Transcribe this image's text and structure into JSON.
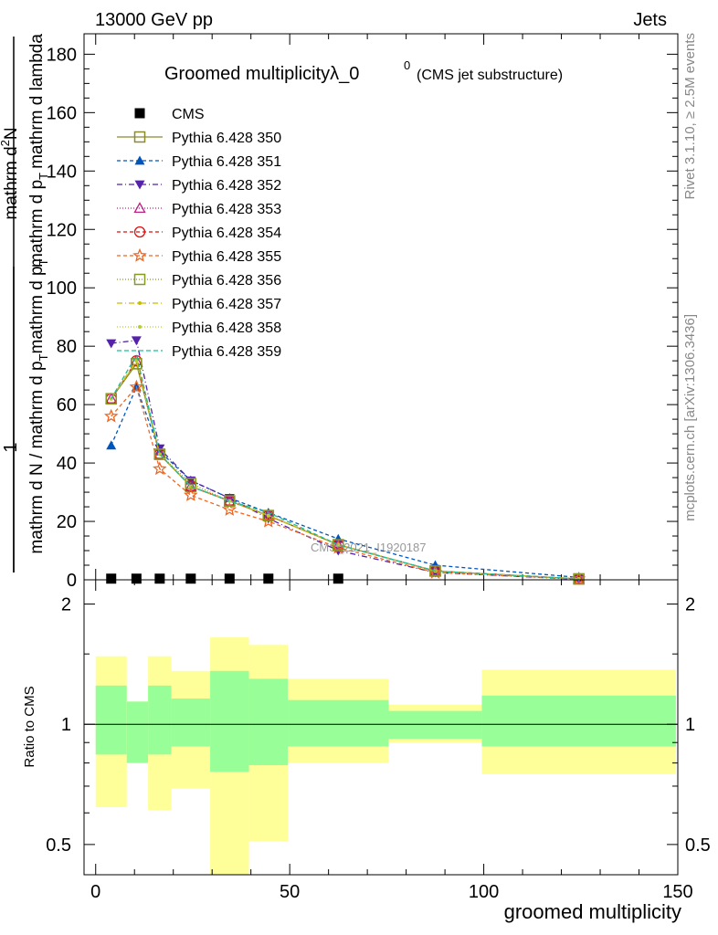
{
  "header": {
    "left": "13000 GeV pp",
    "right": "Jets"
  },
  "side_labels": {
    "rivet": "Rivet 3.1.10, ≥ 2.5M events",
    "mcplots": "mcplots.cern.ch [arXiv:1306.3436]"
  },
  "chart_data": [
    {
      "type": "line",
      "panel": "main",
      "title": "Groomed multiplicityλ_0",
      "title_sup": "0",
      "subtitle": "(CMS jet substructure)",
      "watermark": "CMS_2021_I1920187",
      "ylabel": "1 / (mathrm d N / mathrm d p_T mathrm d p_T) · mathrm d²N / mathrm d lambda",
      "ylabel_parts": {
        "one": "1",
        "denominator": "mathrm d N / mathrm d p",
        "denominator_sub": "T",
        "denominator_tail": "mathrm d p",
        "denominator_tail_sub": "T",
        "numerator_lower": "mathrm d p",
        "numerator_lower_sub": "T",
        "numerator_tail": "mathrm d lambda",
        "numerator_top": "mathrm d",
        "numerator_top_sup": "2",
        "numerator_top_tail": "N"
      },
      "xlim": [
        -3,
        150
      ],
      "ylim": [
        0,
        187
      ],
      "yticks": [
        0,
        20,
        40,
        60,
        80,
        100,
        120,
        140,
        160,
        180
      ],
      "grid": false,
      "legend_position": "top-left",
      "series": [
        {
          "name": "CMS",
          "color": "#000000",
          "marker": "square-filled",
          "dash": "none",
          "x": [
            4,
            10.5,
            16.5,
            24.5,
            34.5,
            44.5,
            62.5
          ],
          "y": [
            0.4,
            0.4,
            0.4,
            0.4,
            0.4,
            0.4,
            0.4
          ]
        },
        {
          "name": "Pythia 6.428 350",
          "color": "#8a8a2e",
          "marker": "square-open",
          "dash": "solid",
          "x": [
            4,
            10.5,
            16.5,
            24.5,
            34.5,
            44.5,
            62.5,
            87.5,
            124.5
          ],
          "y": [
            62,
            74,
            43,
            32,
            27,
            22,
            12,
            3,
            0.3
          ]
        },
        {
          "name": "Pythia 6.428 351",
          "color": "#0055bb",
          "marker": "triangle-up-filled",
          "dash": "4,3",
          "x": [
            4,
            10.5,
            16.5,
            24.5,
            34.5,
            44.5,
            62.5,
            87.5,
            124.5
          ],
          "y": [
            46,
            66,
            44,
            34,
            28,
            23,
            14,
            5,
            0.8
          ]
        },
        {
          "name": "Pythia 6.428 352",
          "color": "#5522aa",
          "marker": "triangle-down-filled",
          "dash": "6,3,1,3",
          "x": [
            4,
            10.5,
            16.5,
            24.5,
            34.5,
            44.5,
            62.5,
            87.5,
            124.5
          ],
          "y": [
            81,
            82,
            45,
            34,
            28,
            21,
            10,
            2.5,
            0.2
          ]
        },
        {
          "name": "Pythia 6.428 353",
          "color": "#bb2288",
          "marker": "triangle-up-open",
          "dash": "1,2",
          "x": [
            4,
            10.5,
            16.5,
            24.5,
            34.5,
            44.5,
            62.5,
            87.5,
            124.5
          ],
          "y": [
            62,
            75,
            43,
            32,
            27,
            22,
            12,
            3,
            0.3
          ]
        },
        {
          "name": "Pythia 6.428 354",
          "color": "#dd1111",
          "marker": "circle-open",
          "dash": "4,3",
          "x": [
            4,
            10.5,
            16.5,
            24.5,
            34.5,
            44.5,
            62.5,
            87.5,
            124.5
          ],
          "y": [
            62,
            75,
            43,
            32,
            27,
            22,
            12,
            3,
            0.3
          ]
        },
        {
          "name": "Pythia 6.428 355",
          "color": "#ee6622",
          "marker": "star-open",
          "dash": "4,3",
          "x": [
            4,
            10.5,
            16.5,
            24.5,
            34.5,
            44.5,
            62.5,
            87.5,
            124.5
          ],
          "y": [
            56,
            66,
            38,
            29,
            24,
            20,
            11,
            2.5,
            0.3
          ]
        },
        {
          "name": "Pythia 6.428 356",
          "color": "#889922",
          "marker": "square-open",
          "dash": "1,2",
          "x": [
            4,
            10.5,
            16.5,
            24.5,
            34.5,
            44.5,
            62.5,
            87.5,
            124.5
          ],
          "y": [
            62,
            74,
            43,
            33,
            27,
            22,
            12,
            3,
            0.3
          ]
        },
        {
          "name": "Pythia 6.428 357",
          "color": "#ccbb00",
          "marker": "dot",
          "dash": "6,3,1,3",
          "x": [
            4,
            10.5,
            16.5,
            24.5,
            34.5,
            44.5,
            62.5,
            87.5,
            124.5
          ],
          "y": [
            62,
            75,
            43,
            32,
            27,
            22,
            12,
            3,
            0.3
          ]
        },
        {
          "name": "Pythia 6.428 358",
          "color": "#bbcc33",
          "marker": "dot",
          "dash": "1,2",
          "x": [
            4,
            10.5,
            16.5,
            24.5,
            34.5,
            44.5,
            62.5,
            87.5,
            124.5
          ],
          "y": [
            62,
            75,
            43,
            32,
            27,
            22,
            12,
            3,
            0.3
          ]
        },
        {
          "name": "Pythia 6.428 359",
          "color": "#22bb99",
          "marker": "none",
          "dash": "5,3",
          "x": [
            4,
            10.5,
            16.5,
            24.5,
            34.5,
            44.5,
            62.5,
            87.5,
            124.5
          ],
          "y": [
            62,
            77,
            43,
            32,
            27,
            23,
            12,
            3,
            0.3
          ]
        }
      ]
    },
    {
      "type": "area",
      "panel": "ratio",
      "ylabel": "Ratio to CMS",
      "xlabel": "groomed multiplicity",
      "xlim": [
        -3,
        150
      ],
      "xticks": [
        0,
        50,
        100,
        150
      ],
      "ylim": [
        0.42,
        2.3
      ],
      "yticks": [
        0.5,
        1,
        2
      ],
      "ytick_labels": [
        "0.5",
        "1",
        "2"
      ],
      "reference_line": 1,
      "bins": [
        {
          "x0": 0,
          "x1": 8,
          "inner": [
            0.84,
            1.25
          ],
          "outer": [
            0.62,
            1.48
          ]
        },
        {
          "x0": 8,
          "x1": 13.5,
          "inner": [
            0.8,
            1.14
          ],
          "outer": [
            0.8,
            1.14
          ]
        },
        {
          "x0": 13.5,
          "x1": 19.5,
          "inner": [
            0.84,
            1.25
          ],
          "outer": [
            0.61,
            1.48
          ]
        },
        {
          "x0": 19.5,
          "x1": 29.5,
          "inner": [
            0.88,
            1.16
          ],
          "outer": [
            0.69,
            1.36
          ]
        },
        {
          "x0": 29.5,
          "x1": 39.5,
          "inner": [
            0.76,
            1.36
          ],
          "outer": [
            0.37,
            1.65
          ]
        },
        {
          "x0": 39.5,
          "x1": 49.5,
          "inner": [
            0.79,
            1.3
          ],
          "outer": [
            0.51,
            1.58
          ]
        },
        {
          "x0": 49.5,
          "x1": 75.5,
          "inner": [
            0.88,
            1.15
          ],
          "outer": [
            0.8,
            1.3
          ]
        },
        {
          "x0": 75.5,
          "x1": 99.5,
          "inner": [
            0.92,
            1.08
          ],
          "outer": [
            0.9,
            1.12
          ]
        },
        {
          "x0": 99.5,
          "x1": 149.5,
          "inner": [
            0.88,
            1.18
          ],
          "outer": [
            0.75,
            1.37
          ]
        }
      ],
      "colors": {
        "inner": "#98ff98",
        "outer": "#ffff99"
      }
    }
  ]
}
